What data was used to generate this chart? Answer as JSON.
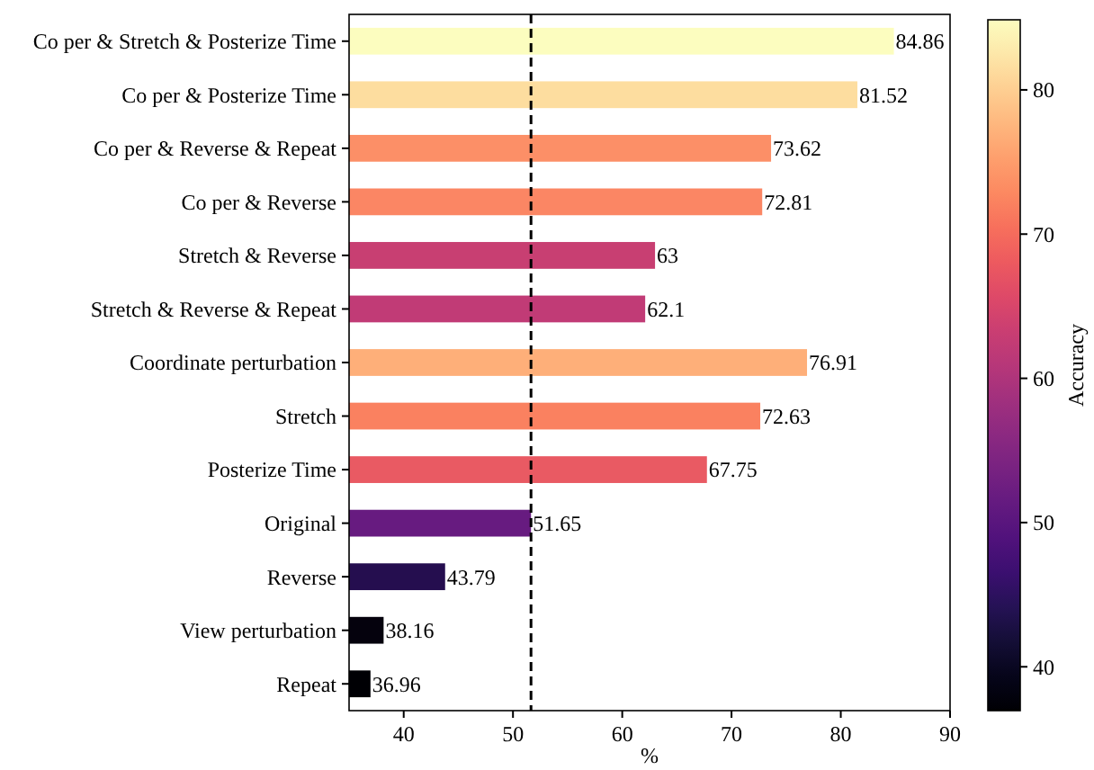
{
  "chart_data": {
    "type": "bar",
    "orientation": "horizontal",
    "xlabel": "%",
    "clabel": "Accuracy",
    "categories": [
      "Co per & Stretch & Posterize Time",
      "Co per & Posterize Time",
      "Co per & Reverse & Repeat",
      "Co per & Reverse",
      "Stretch & Reverse",
      "Stretch & Reverse & Repeat",
      "Coordinate perturbation",
      "Stretch",
      "Posterize Time",
      "Original",
      "Reverse",
      "View perturbation",
      "Repeat"
    ],
    "values": [
      84.86,
      81.52,
      73.62,
      72.81,
      63,
      62.1,
      76.91,
      72.63,
      67.75,
      51.65,
      43.79,
      38.16,
      36.96
    ],
    "colors": [
      "#fcfdbf",
      "#fddd9f",
      "#fc8f67",
      "#fb8664",
      "#c83f72",
      "#c13b76",
      "#feaf79",
      "#fa8160",
      "#e95a63",
      "#671b80",
      "#250e4f",
      "#05020d",
      "#000004"
    ],
    "data_labels": true,
    "xlim": [
      35,
      90
    ],
    "xticks": [
      40,
      50,
      60,
      70,
      80,
      90
    ],
    "clim": [
      36.96,
      84.86
    ],
    "cticks": [
      40,
      50,
      60,
      70,
      80
    ],
    "ref_lines": [
      {
        "axis": "x",
        "value": 51.65,
        "color": "#000000",
        "line_style": "dashed"
      }
    ],
    "grid": false
  }
}
